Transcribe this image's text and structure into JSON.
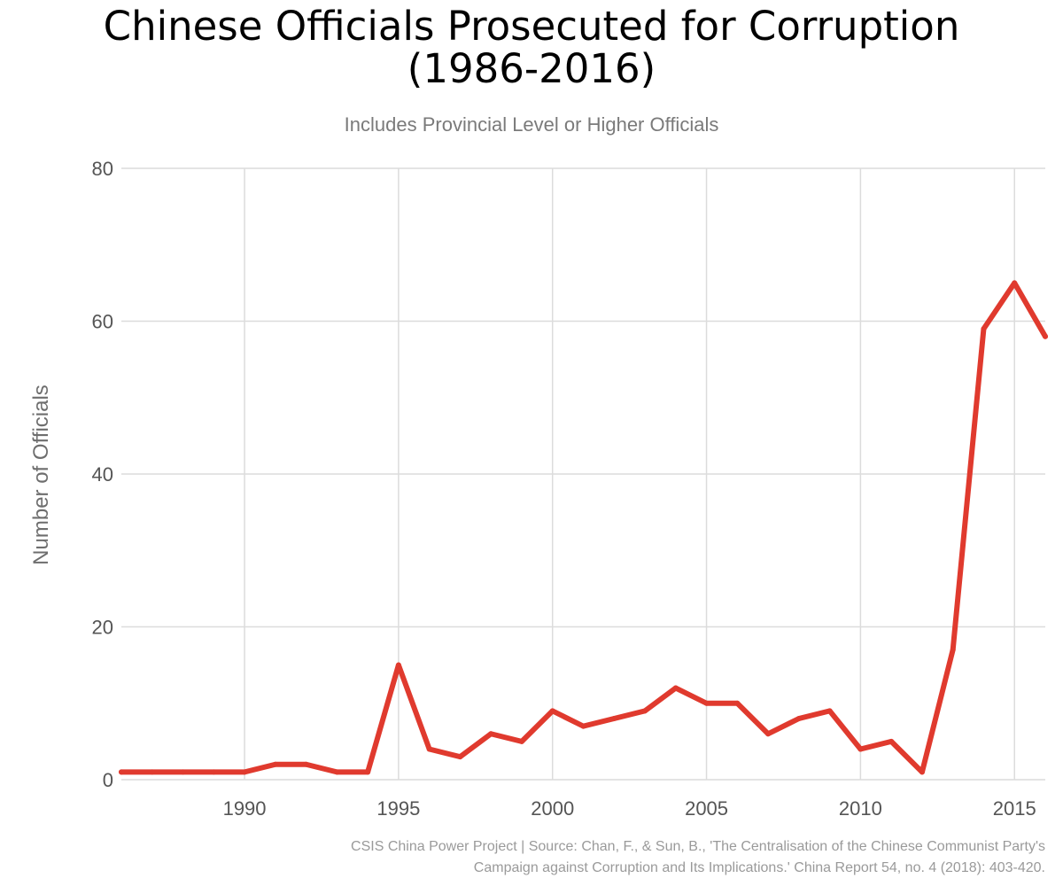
{
  "title_line1": "Chinese Officials Prosecuted for Corruption",
  "title_line2": "(1986-2016)",
  "subtitle": "Includes Provincial Level or Higher Officials",
  "source_line1": "CSIS China Power Project | Source: Chan, F., & Sun, B., 'The Centralisation of the Chinese Communist Party's",
  "source_line2": "Campaign against Corruption and Its Implications.' China Report 54, no. 4 (2018): 403-420.",
  "colors": {
    "line": "#e03a2e",
    "grid": "#dcdcdc",
    "tick": "#555555",
    "axis_label": "#6e6e6e"
  },
  "chart_data": {
    "type": "line",
    "title": "Chinese Officials Prosecuted for Corruption (1986-2016)",
    "subtitle": "Includes Provincial Level or Higher Officials",
    "xlabel": "",
    "ylabel": "Number of Officials",
    "xlim": [
      1986,
      2016
    ],
    "ylim": [
      0,
      80
    ],
    "x_ticks": [
      1990,
      1995,
      2000,
      2005,
      2010,
      2015
    ],
    "y_ticks": [
      0,
      20,
      40,
      60,
      80
    ],
    "grid": true,
    "legend": "none",
    "series": [
      {
        "x": [
          1986,
          1987,
          1988,
          1989,
          1990,
          1991,
          1992,
          1993,
          1994,
          1995,
          1996,
          1997,
          1998,
          1999,
          2000,
          2001,
          2002,
          2003,
          2004,
          2005,
          2006,
          2007,
          2008,
          2009,
          2010,
          2011,
          2012,
          2013,
          2014,
          2015,
          2016
        ],
        "values": [
          1,
          1,
          1,
          1,
          1,
          2,
          2,
          1,
          1,
          15,
          4,
          3,
          6,
          5,
          9,
          7,
          8,
          9,
          12,
          10,
          10,
          6,
          8,
          9,
          4,
          5,
          1,
          17,
          59,
          65,
          58
        ]
      }
    ]
  }
}
